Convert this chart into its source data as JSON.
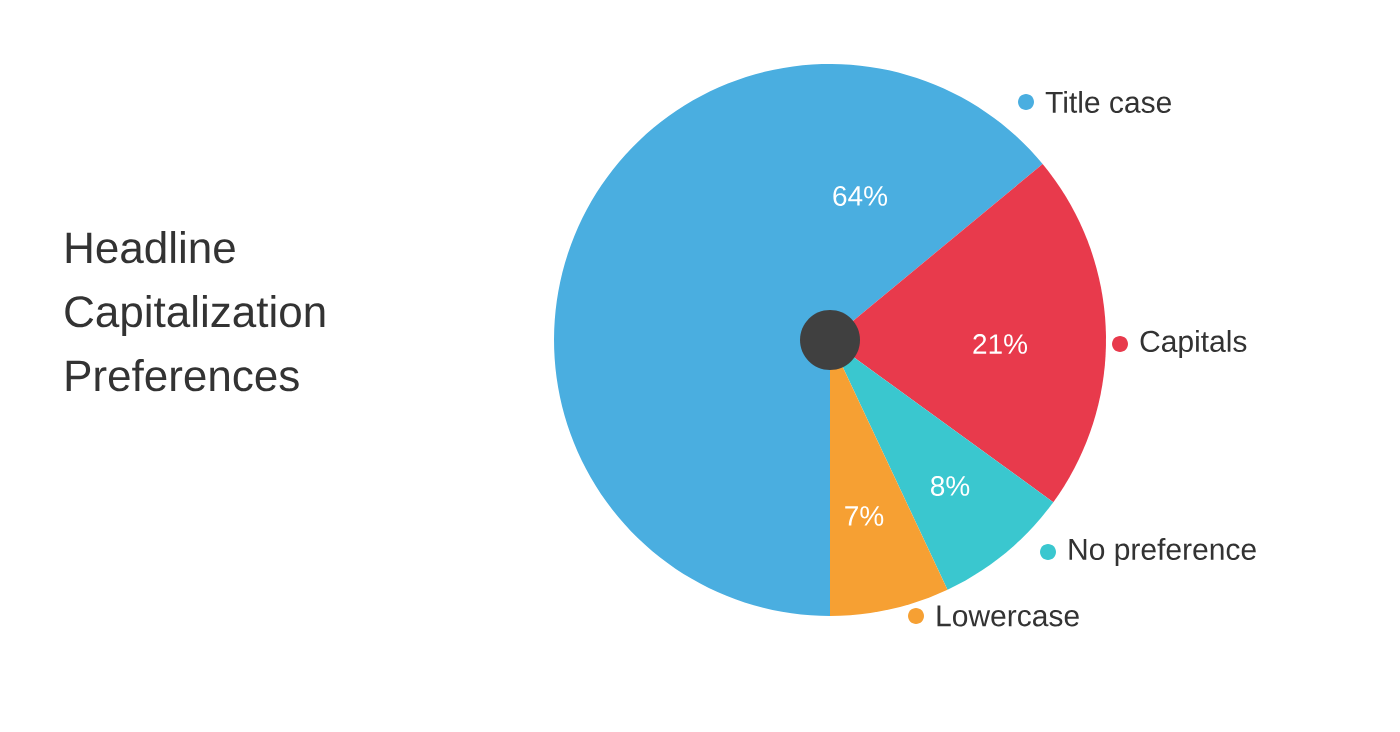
{
  "chart_data": {
    "type": "pie",
    "title": "Headline Capitalization Preferences",
    "categories": [
      "Title case",
      "Capitals",
      "No preference",
      "Lowercase"
    ],
    "values": [
      64,
      21,
      8,
      7
    ],
    "value_labels": [
      "64%",
      "21%",
      "8%",
      "7%"
    ],
    "colors": [
      "#4aaee0",
      "#e83a4c",
      "#3ac7cf",
      "#f6a033"
    ],
    "legend": "right"
  }
}
